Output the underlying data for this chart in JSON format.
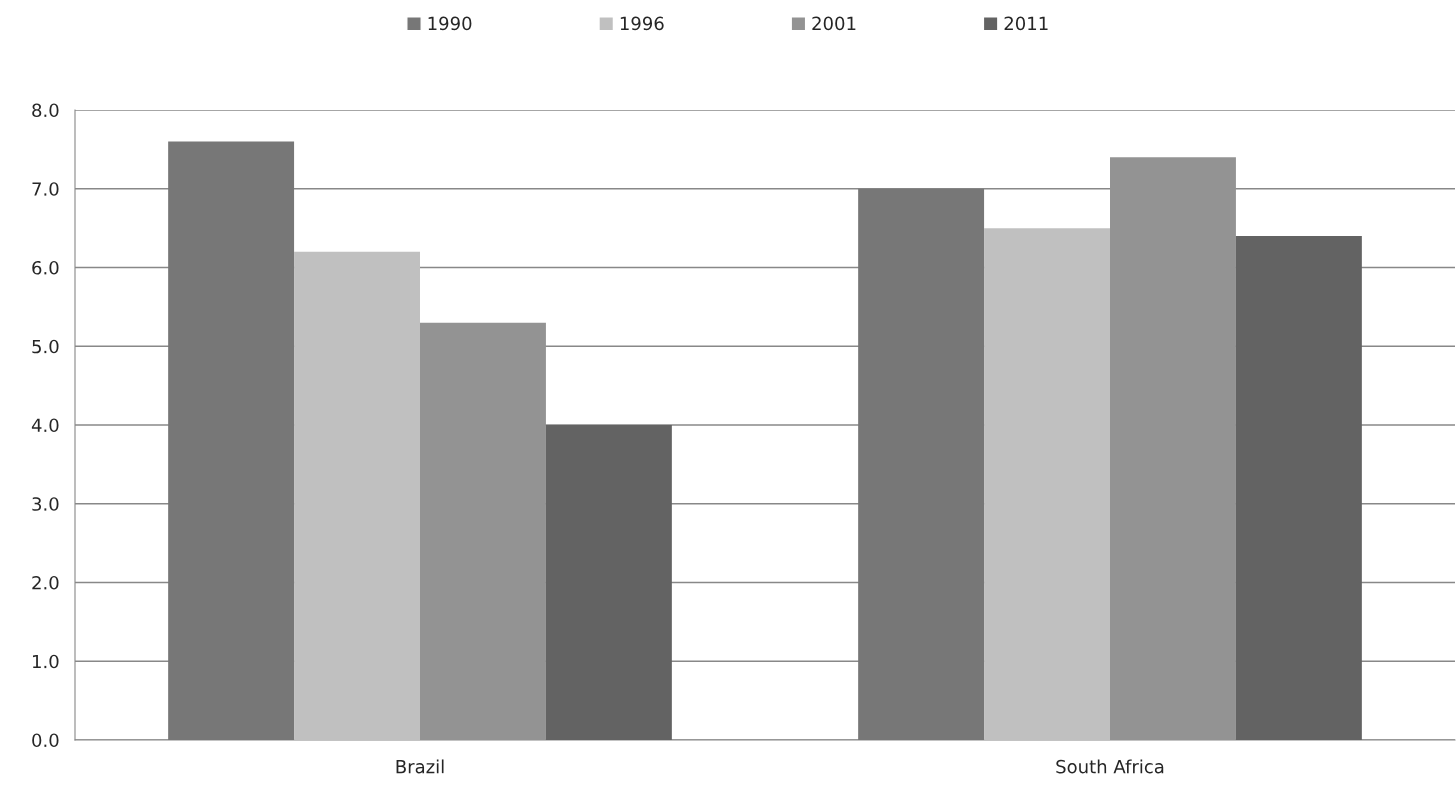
{
  "chart_data": {
    "type": "bar",
    "categories": [
      "Brazil",
      "South Africa"
    ],
    "series": [
      {
        "name": "1990",
        "color": "#777777",
        "values": [
          7.6,
          7.0
        ]
      },
      {
        "name": "1996",
        "color": "#c0c0c0",
        "values": [
          6.2,
          6.5
        ]
      },
      {
        "name": "2001",
        "color": "#939393",
        "values": [
          5.3,
          7.4
        ]
      },
      {
        "name": "2011",
        "color": "#636363",
        "values": [
          4.0,
          6.4
        ]
      }
    ],
    "ylim": [
      0,
      8
    ],
    "yticks": [
      {
        "value": 0,
        "label": "0.0"
      },
      {
        "value": 1,
        "label": "1.0"
      },
      {
        "value": 2,
        "label": "2.0"
      },
      {
        "value": 3,
        "label": "3.0"
      },
      {
        "value": 4,
        "label": "4.0"
      },
      {
        "value": 5,
        "label": "5.0"
      },
      {
        "value": 6,
        "label": "6.0"
      },
      {
        "value": 7,
        "label": "7.0"
      },
      {
        "value": 8,
        "label": "8.0"
      }
    ],
    "grid": "y",
    "legend": "top"
  }
}
